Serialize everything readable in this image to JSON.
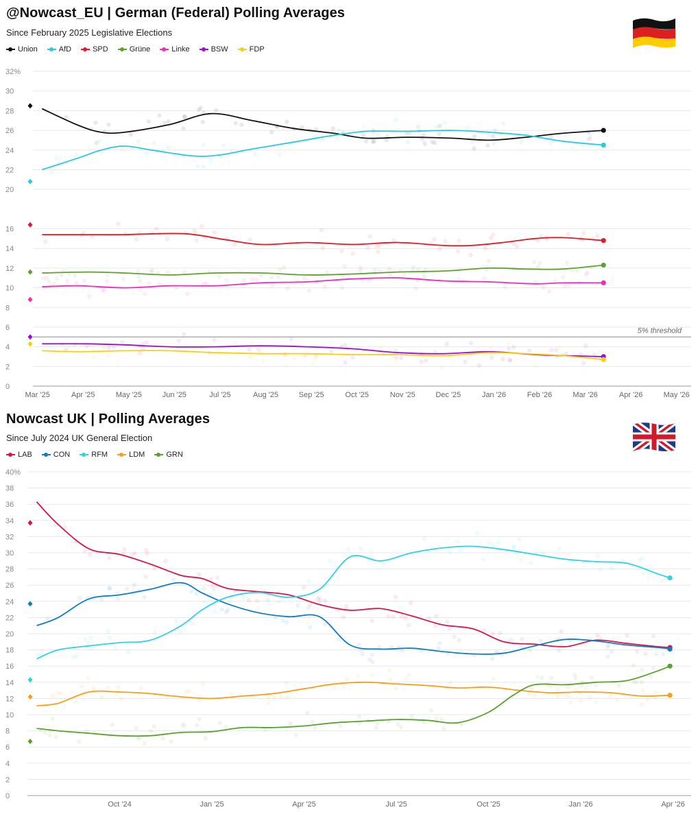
{
  "chart_data": [
    {
      "type": "line",
      "title": "@Nowcast_EU | German (Federal) Polling Averages",
      "subtitle": "Since February 2025 Legislative Elections",
      "ylabel": "",
      "xlabel": "",
      "ylim": [
        0,
        32
      ],
      "yticks": [
        0,
        2,
        4,
        6,
        8,
        10,
        12,
        14,
        16,
        20,
        22,
        24,
        26,
        28,
        30,
        32
      ],
      "ytick_labels": [
        "0",
        "2",
        "4",
        "6",
        "8",
        "10",
        "12",
        "14",
        "16",
        "20",
        "22",
        "24",
        "26",
        "28",
        "30",
        "32%"
      ],
      "xlim": [
        0,
        14.3
      ],
      "x_ticks": [
        0.1,
        1.1,
        2.1,
        3.1,
        4.1,
        5.1,
        6.1,
        7.1,
        8.1,
        9.1,
        10.1,
        11.1,
        12.1,
        13.1,
        14.1
      ],
      "categories": [
        "Mar '25",
        "Apr '25",
        "May '25",
        "Jun '25",
        "Jul '25",
        "Aug '25",
        "Sep '25",
        "Oct '25",
        "Nov '25",
        "Dec '25",
        "Jan '26",
        "Feb '26",
        "Mar '26",
        "Apr '26",
        "May '26"
      ],
      "threshold": {
        "value": 5,
        "label": "5% threshold"
      },
      "grid": true,
      "legend_position": "top-left",
      "series": [
        {
          "name": "Union",
          "color": "#111111",
          "election": 28.5,
          "x": [
            0.2,
            1.0,
            1.5,
            2.0,
            3.0,
            3.9,
            4.8,
            5.7,
            6.6,
            7.3,
            8.2,
            9.2,
            10.0,
            10.8,
            11.6,
            12.5
          ],
          "values": [
            28.2,
            26.5,
            25.8,
            25.8,
            26.6,
            27.7,
            27.0,
            26.2,
            25.7,
            25.2,
            25.3,
            25.2,
            25.0,
            25.3,
            25.7,
            26.0
          ]
        },
        {
          "name": "AfD",
          "color": "#29c9e3",
          "election": 20.8,
          "x": [
            0.2,
            1.0,
            1.5,
            2.0,
            2.6,
            3.5,
            4.1,
            4.8,
            5.7,
            6.6,
            7.3,
            8.2,
            9.2,
            10.0,
            10.8,
            11.6,
            12.5
          ],
          "values": [
            22.0,
            23.2,
            24.0,
            24.4,
            24.0,
            23.4,
            23.5,
            24.1,
            24.8,
            25.5,
            25.9,
            25.9,
            26.0,
            25.8,
            25.5,
            24.9,
            24.5
          ]
        },
        {
          "name": "SPD",
          "color": "#e01a2b",
          "election": 16.4,
          "x": [
            0.2,
            1.2,
            2.0,
            3.3,
            4.2,
            5.0,
            6.0,
            7.0,
            8.0,
            9.0,
            9.6,
            10.3,
            11.0,
            11.6,
            12.5
          ],
          "values": [
            15.4,
            15.4,
            15.4,
            15.5,
            14.9,
            14.4,
            14.6,
            14.4,
            14.6,
            14.3,
            14.3,
            14.6,
            15.0,
            15.1,
            14.8
          ]
        },
        {
          "name": "Grüne",
          "color": "#5fa02f",
          "election": 11.6,
          "x": [
            0.2,
            1.2,
            2.0,
            3.0,
            4.0,
            5.0,
            6.0,
            7.0,
            8.0,
            9.0,
            10.0,
            10.8,
            11.6,
            12.5
          ],
          "values": [
            11.5,
            11.6,
            11.5,
            11.3,
            11.5,
            11.5,
            11.3,
            11.4,
            11.6,
            11.7,
            12.0,
            11.9,
            11.9,
            12.3
          ]
        },
        {
          "name": "Linke",
          "color": "#ee2bbd",
          "election": 8.8,
          "x": [
            0.2,
            1.0,
            2.0,
            3.0,
            4.0,
            5.0,
            6.0,
            7.0,
            8.0,
            9.0,
            10.0,
            11.0,
            11.6,
            12.5
          ],
          "values": [
            10.1,
            10.2,
            10.0,
            10.2,
            10.2,
            10.5,
            10.6,
            10.9,
            11.0,
            10.7,
            10.6,
            10.4,
            10.5,
            10.5
          ]
        },
        {
          "name": "BSW",
          "color": "#9b0ed0",
          "election": 5.0,
          "x": [
            0.2,
            1.2,
            2.0,
            3.0,
            4.0,
            5.0,
            6.0,
            7.0,
            8.0,
            9.0,
            10.0,
            11.0,
            11.6,
            12.5
          ],
          "values": [
            4.3,
            4.3,
            4.2,
            4.0,
            4.0,
            4.1,
            4.0,
            3.8,
            3.4,
            3.3,
            3.5,
            3.2,
            3.1,
            3.0
          ]
        },
        {
          "name": "FDP",
          "color": "#f5d10a",
          "election": 4.3,
          "x": [
            0.2,
            1.0,
            2.0,
            3.0,
            4.0,
            5.0,
            6.0,
            7.0,
            8.0,
            9.0,
            10.0,
            10.8,
            11.6,
            12.5
          ],
          "values": [
            3.6,
            3.5,
            3.6,
            3.6,
            3.4,
            3.3,
            3.3,
            3.2,
            3.2,
            3.1,
            3.4,
            3.3,
            3.1,
            2.7
          ]
        }
      ]
    },
    {
      "type": "line",
      "title": "Nowcast UK | Polling Averages",
      "subtitle": "Since July 2024 UK General Election",
      "ylabel": "",
      "xlabel": "",
      "ylim": [
        0,
        40
      ],
      "yticks": [
        0,
        2,
        4,
        6,
        8,
        10,
        12,
        14,
        16,
        18,
        20,
        22,
        24,
        26,
        28,
        30,
        32,
        34,
        36,
        38,
        40
      ],
      "ytick_labels": [
        "0",
        "2",
        "4",
        "6",
        "8",
        "10",
        "12",
        "14",
        "16",
        "18",
        "20",
        "22",
        "24",
        "26",
        "28",
        "30",
        "32",
        "34",
        "36",
        "38",
        "40%"
      ],
      "xlim": [
        0,
        21.5
      ],
      "x_ticks": [
        3.0,
        6.0,
        9.0,
        12.0,
        15.0,
        18.0,
        21.0
      ],
      "categories": [
        "Oct '24",
        "Jan '25",
        "Apr '25",
        "Jul '25",
        "Oct '25",
        "Jan '26",
        "Apr '26"
      ],
      "grid": true,
      "legend_position": "top-left",
      "series": [
        {
          "name": "LAB",
          "color": "#d3164b",
          "election": 33.7,
          "x": [
            0.3,
            1.0,
            2.0,
            3.0,
            4.0,
            5.0,
            5.7,
            6.5,
            7.5,
            8.5,
            9.5,
            10.5,
            11.5,
            12.5,
            13.5,
            14.5,
            15.5,
            16.5,
            17.5,
            18.5,
            19.5,
            20.5,
            20.9
          ],
          "values": [
            36.3,
            33.5,
            30.5,
            29.8,
            28.6,
            27.2,
            26.8,
            25.6,
            25.2,
            24.8,
            23.6,
            22.9,
            23.1,
            22.2,
            21.1,
            20.6,
            19.0,
            18.7,
            18.4,
            19.2,
            18.8,
            18.4,
            18.3
          ]
        },
        {
          "name": "CON",
          "color": "#0e7dc2",
          "election": 23.7,
          "x": [
            0.3,
            1.0,
            2.0,
            3.0,
            4.0,
            5.0,
            5.7,
            6.5,
            7.5,
            8.5,
            9.5,
            10.5,
            11.5,
            12.5,
            13.5,
            14.5,
            15.5,
            16.5,
            17.5,
            18.5,
            19.5,
            20.5,
            20.9
          ],
          "values": [
            21.0,
            22.0,
            24.3,
            24.8,
            25.5,
            26.3,
            25.0,
            23.7,
            22.6,
            22.1,
            22.1,
            18.6,
            18.1,
            18.2,
            17.8,
            17.5,
            17.6,
            18.5,
            19.3,
            19.1,
            18.6,
            18.3,
            18.1
          ]
        },
        {
          "name": "RFM",
          "color": "#2ed2e3",
          "election": 14.3,
          "x": [
            0.3,
            1.0,
            2.0,
            3.0,
            4.0,
            5.0,
            5.7,
            6.5,
            7.5,
            8.5,
            9.5,
            10.5,
            11.5,
            12.5,
            13.5,
            14.5,
            15.5,
            16.5,
            17.5,
            18.5,
            19.5,
            20.5,
            20.9
          ],
          "values": [
            16.9,
            18.0,
            18.5,
            18.9,
            19.2,
            21.0,
            23.0,
            24.5,
            25.1,
            24.5,
            25.5,
            29.5,
            29.0,
            30.0,
            30.6,
            30.8,
            30.4,
            29.8,
            29.2,
            28.9,
            28.7,
            27.4,
            26.9
          ]
        },
        {
          "name": "LDM",
          "color": "#f5a01a",
          "election": 12.2,
          "x": [
            0.3,
            1.0,
            2.0,
            3.0,
            4.0,
            5.0,
            6.0,
            7.0,
            8.0,
            9.0,
            10.0,
            11.0,
            12.0,
            13.0,
            14.0,
            15.0,
            16.0,
            17.0,
            18.0,
            19.0,
            20.0,
            20.9
          ],
          "values": [
            11.1,
            11.4,
            12.8,
            12.8,
            12.6,
            12.2,
            12.0,
            12.3,
            12.6,
            13.2,
            13.8,
            14.0,
            13.8,
            13.6,
            13.3,
            13.4,
            13.0,
            12.7,
            12.8,
            12.7,
            12.3,
            12.4
          ]
        },
        {
          "name": "GRN",
          "color": "#5aa02c",
          "election": 6.7,
          "x": [
            0.3,
            1.0,
            2.0,
            3.0,
            4.0,
            5.0,
            6.0,
            7.0,
            8.0,
            9.0,
            10.0,
            11.0,
            12.0,
            13.0,
            14.0,
            15.0,
            15.8,
            16.5,
            17.5,
            18.5,
            19.5,
            20.5,
            20.9
          ],
          "values": [
            8.3,
            8.0,
            7.7,
            7.4,
            7.4,
            7.8,
            7.9,
            8.4,
            8.4,
            8.6,
            9.0,
            9.2,
            9.4,
            9.3,
            9.0,
            10.3,
            12.4,
            13.7,
            13.7,
            14.0,
            14.2,
            15.4,
            16.0
          ]
        }
      ]
    }
  ],
  "flags": {
    "de": "German flag",
    "uk": "UK flag"
  }
}
